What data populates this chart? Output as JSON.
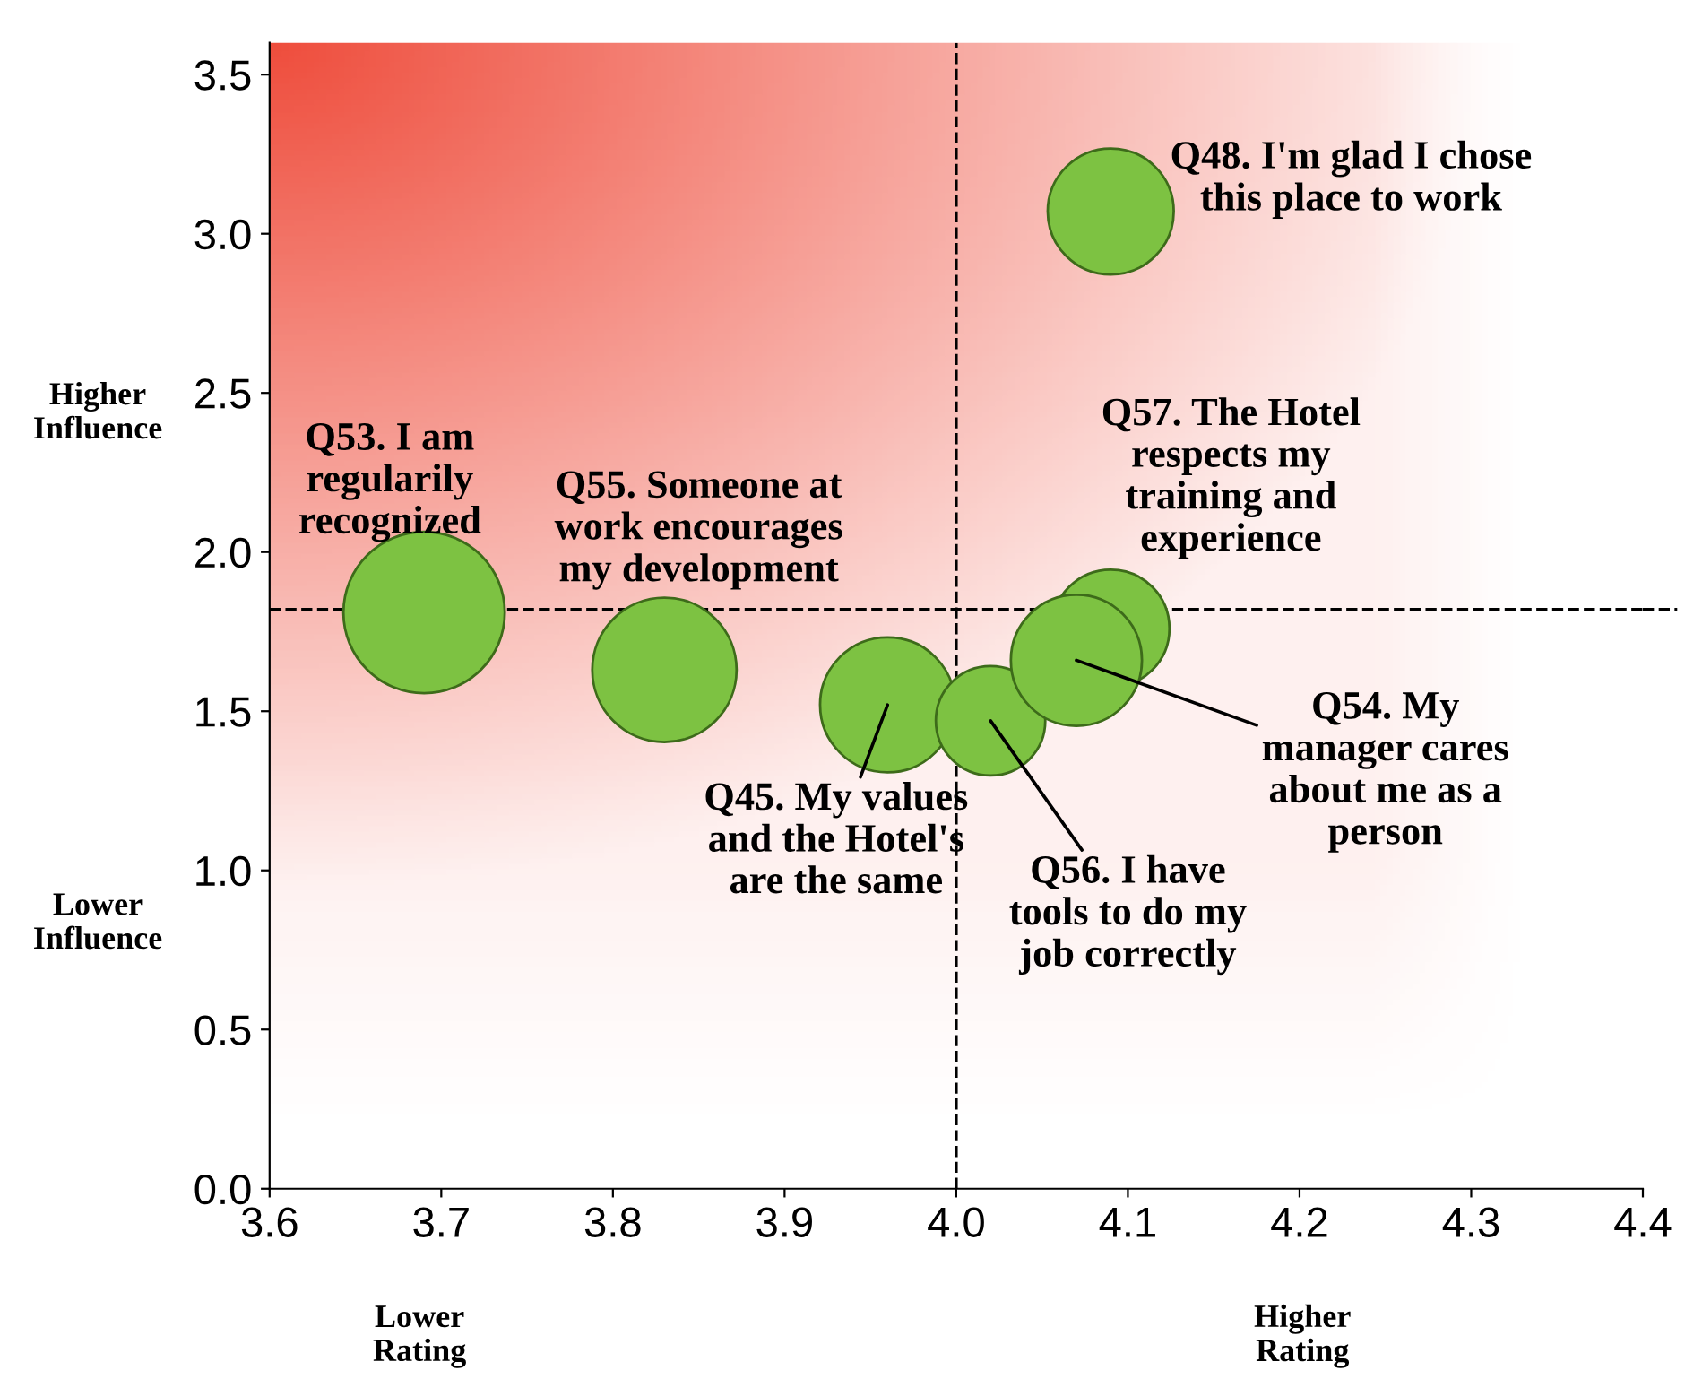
{
  "chart_data": {
    "type": "bubble",
    "x": [
      4.09,
      3.69,
      3.83,
      3.96,
      4.02,
      4.09,
      4.07
    ],
    "values": [
      3.07,
      1.81,
      1.63,
      1.52,
      1.47,
      1.76,
      1.66
    ],
    "sizes": [
      0.61,
      1,
      0.8,
      0.7,
      0.46,
      0.53,
      0.66
    ],
    "color": "#7dc242",
    "xlim": [
      3.6,
      4.4
    ],
    "xticks": [
      {
        "value": 3.6,
        "label": "3.6"
      },
      {
        "value": 3.7,
        "label": "3.7"
      },
      {
        "value": 3.8,
        "label": "3.8"
      },
      {
        "value": 3.9,
        "label": "3.9"
      },
      {
        "value": 4.0,
        "label": "4.0"
      },
      {
        "value": 4.1,
        "label": "4.1"
      },
      {
        "value": 4.2,
        "label": "4.2"
      },
      {
        "value": 4.3,
        "label": "4.3"
      },
      {
        "value": 4.4,
        "label": "4.4"
      }
    ],
    "ylim": [
      0,
      3.6
    ],
    "yticks": [
      {
        "value": 0,
        "label": "0.0"
      },
      {
        "value": 0.5,
        "label": "0.5"
      },
      {
        "value": 1.0,
        "label": "1.0"
      },
      {
        "value": 1.5,
        "label": "1.5"
      },
      {
        "value": 2.0,
        "label": "2.0"
      },
      {
        "value": 2.5,
        "label": "2.5"
      },
      {
        "value": 3.0,
        "label": "3.0"
      },
      {
        "value": 3.5,
        "label": "3.5"
      }
    ],
    "grid": false,
    "legend": false,
    "ref_lines": [
      {
        "axis": "x",
        "value": 4.0,
        "line_style": "dashed",
        "color": "#000000"
      },
      {
        "axis": "y",
        "value": 1.82,
        "line_style": "dashed",
        "color": "#000000"
      }
    ],
    "annotations": [
      {
        "text": "Q48. I'm glad I chose\nthis place to work",
        "x": 4.09,
        "y": 3.07
      },
      {
        "text": "Q53. I am\nregularily\nrecognized",
        "x": 3.69,
        "y": 1.81
      },
      {
        "text": "Q55. Someone at\nwork encourages\nmy development",
        "x": 3.83,
        "y": 1.63
      },
      {
        "text": "Q45. My values\nand the Hotel's\nare the same",
        "x": 3.96,
        "y": 1.52
      },
      {
        "text": "Q56. I have\ntools to do my\njob correctly",
        "x": 4.02,
        "y": 1.47
      },
      "Q57. The Hotel\nrespects my\ntraining and\nexperience",
      {
        "text": "Q54. My\nmanager cares\nabout me as a\nperson",
        "x": 4.07,
        "y": 1.66
      },
      "Higher\nInfluence",
      "Lower\nInfluence",
      "Lower\nRating",
      "Higher\nRating"
    ]
  }
}
